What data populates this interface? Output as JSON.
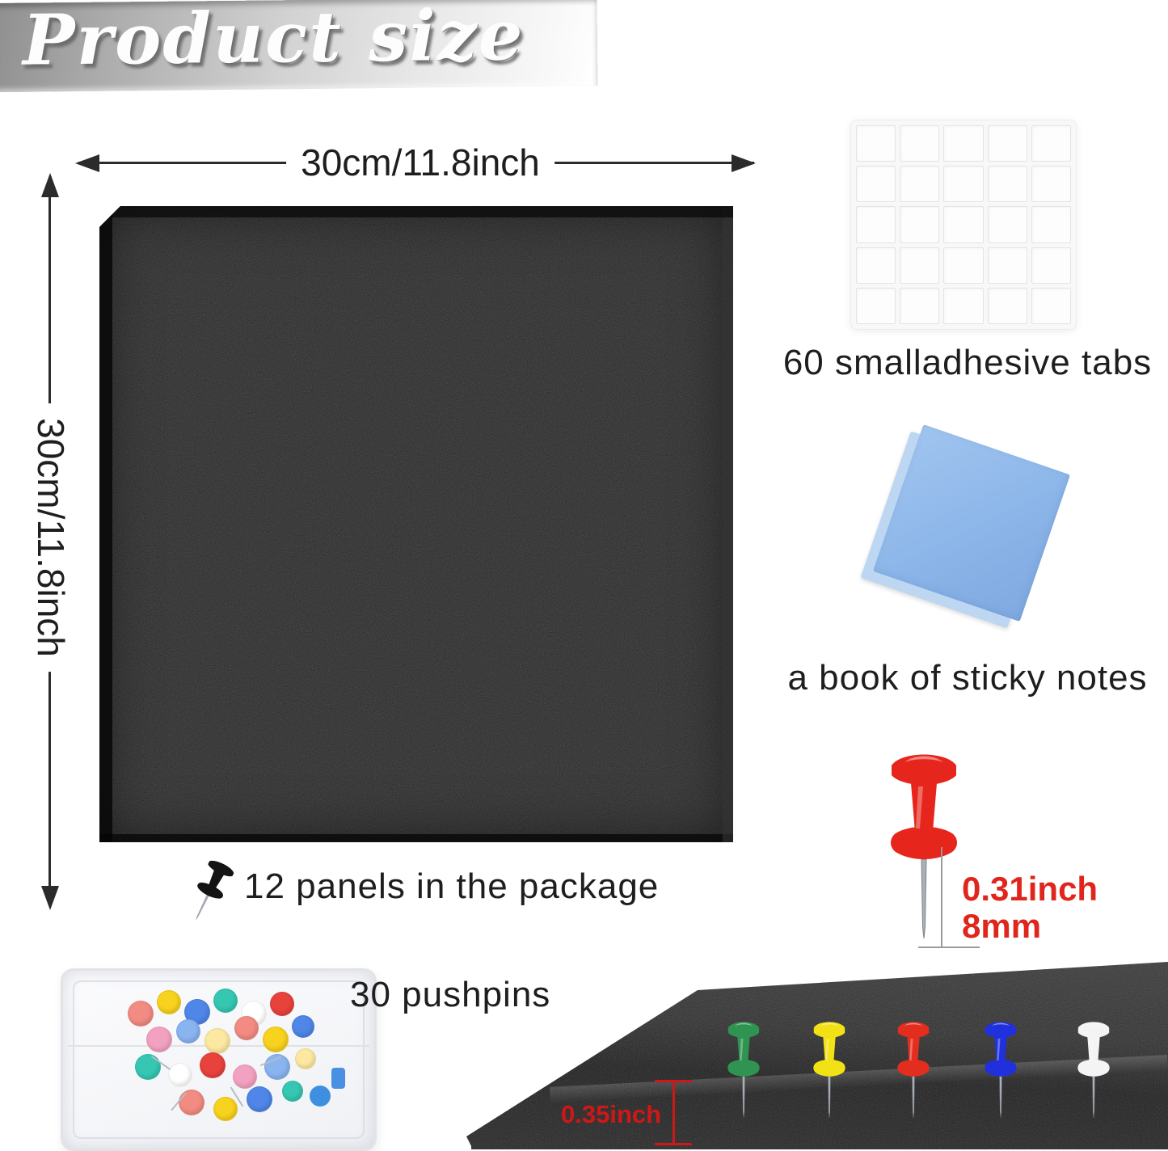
{
  "title": "Product size",
  "dimensions": {
    "width_label": "30cm/11.8inch",
    "height_label": "30cm/11.8inch"
  },
  "captions": {
    "adhesive_tabs": "60 smalladhesive tabs",
    "sticky_notes": "a book of sticky notes",
    "panel_count": "12 panels in the package",
    "pushpin_count": "30 pushpins"
  },
  "measurements": {
    "pin_needle_inch": "0.31inch",
    "pin_needle_mm": "8mm",
    "panel_thickness": "0.35inch"
  },
  "colors": {
    "measure_red": "#e0261c",
    "thickness_red": "#cf1717",
    "arrow_dark": "#2b2b2b",
    "panel_felt": "#1d1d1d",
    "sticky_note_blue": "#8cb6e9",
    "banner_gray": "#c7c7c7"
  },
  "pins": {
    "red_pin_color": "#e6251c",
    "icon_pin_color": "#141414",
    "bottom_colors": [
      "#2f9352",
      "#f2e215",
      "#e32d1e",
      "#2030dd",
      "#f4f4f4"
    ],
    "box_colors": [
      "#f28b82",
      "#f7d21e",
      "#4f86e8",
      "#35c7b2",
      "#ffffff",
      "#e8423c",
      "#f2a2c0",
      "#8ab4f0",
      "#fce8a0"
    ]
  },
  "tabs_grid": {
    "rows": 5,
    "cols": 5
  }
}
